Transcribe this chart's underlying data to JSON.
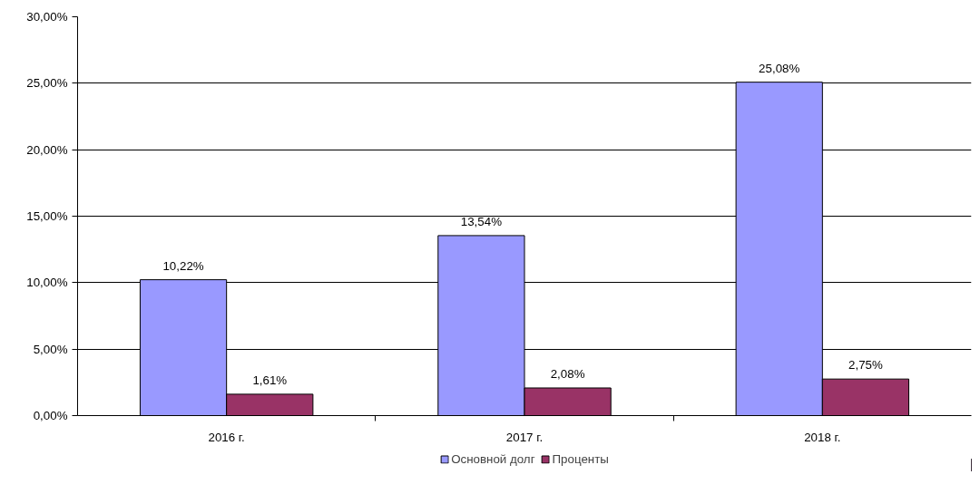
{
  "chart_data": {
    "type": "bar",
    "categories": [
      "2016 г.",
      "2017 г.",
      "2018 г."
    ],
    "series": [
      {
        "name": "Основной долг",
        "color": "#9999ff",
        "values": [
          10.22,
          13.54,
          25.08
        ],
        "value_labels": [
          "10,22%",
          "13,54%",
          "25,08%"
        ]
      },
      {
        "name": "Проценты",
        "color": "#993366",
        "values": [
          1.61,
          2.08,
          2.75
        ],
        "value_labels": [
          "1,61%",
          "2,08%",
          "2,75%"
        ]
      }
    ],
    "ylim": [
      0,
      30
    ],
    "yticks": [
      {
        "value": 0,
        "label": "0,00%"
      },
      {
        "value": 5,
        "label": "5,00%"
      },
      {
        "value": 10,
        "label": "10,00%"
      },
      {
        "value": 15,
        "label": "15,00%"
      },
      {
        "value": 20,
        "label": "20,00%"
      },
      {
        "value": 25,
        "label": "25,00%"
      },
      {
        "value": 30,
        "label": "30,00%"
      }
    ],
    "grid": "y",
    "legend": "bottom"
  }
}
